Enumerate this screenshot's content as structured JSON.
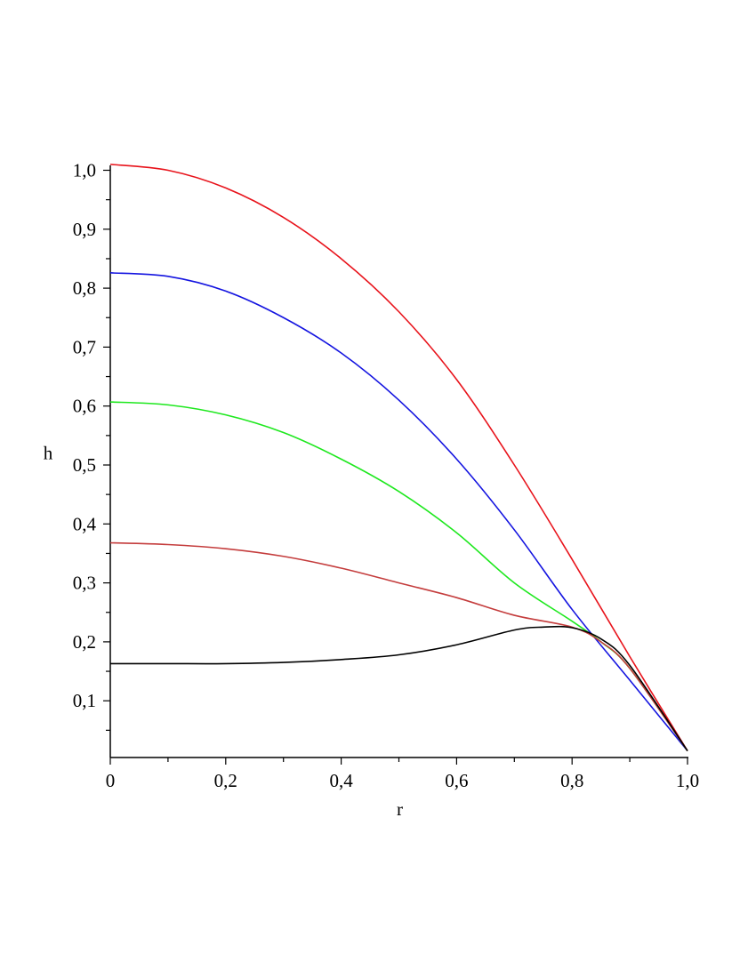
{
  "chart_data": {
    "type": "line",
    "xlabel": "r",
    "ylabel": "h",
    "xlim": [
      0,
      1.0
    ],
    "ylim": [
      0.01,
      1.01
    ],
    "grid": false,
    "x_ticks": [
      "0",
      "0,2",
      "0,4",
      "0,6",
      "0,8",
      "1,0"
    ],
    "y_ticks": [
      "0,1",
      "0,2",
      "0,3",
      "0,4",
      "0,5",
      "0,6",
      "0,7",
      "0,8",
      "0,9",
      "1,0"
    ],
    "series": [
      {
        "color": "#e8131b",
        "x": [
          0,
          0.1,
          0.2,
          0.3,
          0.4,
          0.5,
          0.6,
          0.7,
          0.8,
          0.9,
          1.0
        ],
        "y": [
          1.01,
          1.0,
          0.97,
          0.92,
          0.85,
          0.76,
          0.645,
          0.5,
          0.34,
          0.175,
          0.015
        ]
      },
      {
        "color": "#1414e0",
        "x": [
          0,
          0.1,
          0.2,
          0.3,
          0.4,
          0.5,
          0.6,
          0.7,
          0.8,
          0.9,
          1.0
        ],
        "y": [
          0.826,
          0.82,
          0.795,
          0.75,
          0.69,
          0.61,
          0.51,
          0.39,
          0.255,
          0.135,
          0.015
        ]
      },
      {
        "color": "#1ee81e",
        "x": [
          0,
          0.1,
          0.2,
          0.3,
          0.4,
          0.5,
          0.6,
          0.7,
          0.8,
          0.85,
          0.9,
          1.0
        ],
        "y": [
          0.607,
          0.602,
          0.585,
          0.555,
          0.51,
          0.455,
          0.385,
          0.3,
          0.235,
          0.2,
          0.155,
          0.015
        ]
      },
      {
        "color": "#c43c3c",
        "x": [
          0,
          0.1,
          0.2,
          0.3,
          0.4,
          0.5,
          0.6,
          0.7,
          0.8,
          0.85,
          0.9,
          1.0
        ],
        "y": [
          0.368,
          0.365,
          0.358,
          0.345,
          0.325,
          0.3,
          0.275,
          0.245,
          0.225,
          0.2,
          0.155,
          0.015
        ]
      },
      {
        "color": "#000000",
        "x": [
          0,
          0.1,
          0.2,
          0.3,
          0.4,
          0.5,
          0.6,
          0.7,
          0.75,
          0.8,
          0.85,
          0.9,
          1.0
        ],
        "y": [
          0.163,
          0.163,
          0.163,
          0.165,
          0.17,
          0.178,
          0.195,
          0.22,
          0.225,
          0.224,
          0.205,
          0.16,
          0.015
        ]
      }
    ]
  }
}
